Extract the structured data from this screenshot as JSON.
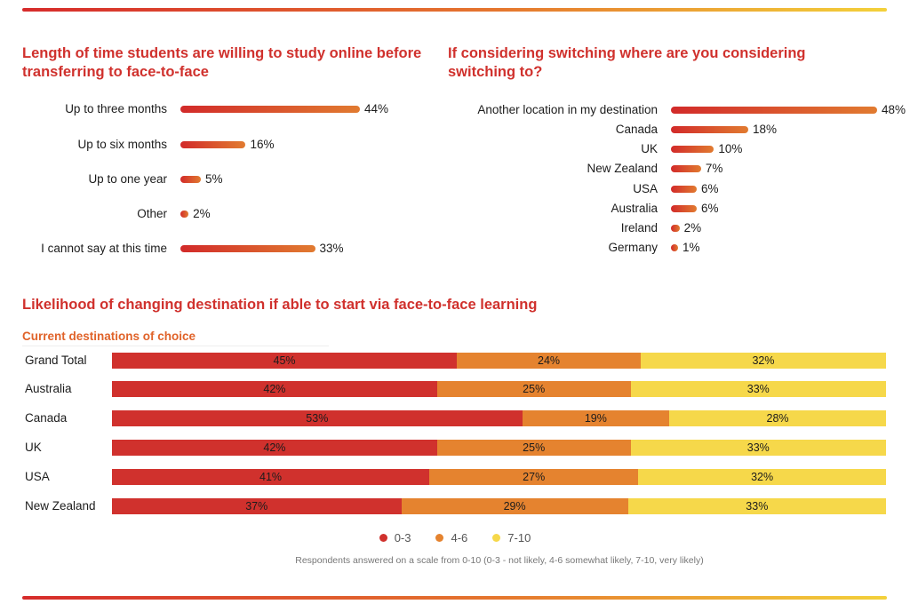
{
  "colors": {
    "accent": "#d0312d",
    "bar_start": "#d22a2a",
    "bar_end": "#e17b30",
    "seg_low": "#d0312d",
    "seg_mid": "#e5832f",
    "seg_high": "#f6d84a",
    "subtitle": "#e0632a"
  },
  "chart_data": [
    {
      "type": "bar",
      "orientation": "horizontal",
      "title": "Length of time students are willing to study online before transferring to face-to-face",
      "categories": [
        "Up to three months",
        "Up to six months",
        "Up to one year",
        "Other",
        "I cannot say at this time"
      ],
      "values": [
        44,
        16,
        5,
        2,
        33
      ],
      "labels": [
        "44%",
        "16%",
        "5%",
        "2%",
        "33%"
      ],
      "unit": "%",
      "xlim": [
        0,
        44
      ]
    },
    {
      "type": "bar",
      "orientation": "horizontal",
      "title": "If considering switching where are you considering switching to?",
      "categories": [
        "Another location in my destination",
        "Canada",
        "UK",
        "New Zealand",
        "USA",
        "Australia",
        "Ireland",
        "Germany"
      ],
      "values": [
        48,
        18,
        10,
        7,
        6,
        6,
        2,
        1
      ],
      "labels": [
        "48%",
        "18%",
        "10%",
        "7%",
        "6%",
        "6%",
        "2%",
        "1%"
      ],
      "unit": "%",
      "xlim": [
        0,
        48
      ]
    },
    {
      "type": "bar",
      "orientation": "horizontal",
      "stacked": true,
      "title": "Likelihood of changing destination if able to start via face-to-face learning",
      "subtitle": "Current destinations of choice",
      "categories": [
        "Grand Total",
        "Australia",
        "Canada",
        "UK",
        "USA",
        "New Zealand"
      ],
      "series": [
        {
          "name": "0-3",
          "values": [
            45,
            42,
            53,
            42,
            41,
            37
          ],
          "labels": [
            "45%",
            "42%",
            "53%",
            "42%",
            "41%",
            "37%"
          ]
        },
        {
          "name": "4-6",
          "values": [
            24,
            25,
            19,
            25,
            27,
            29
          ],
          "labels": [
            "24%",
            "25%",
            "19%",
            "25%",
            "27%",
            "29%"
          ]
        },
        {
          "name": "7-10",
          "values": [
            32,
            33,
            28,
            33,
            32,
            33
          ],
          "labels": [
            "32%",
            "33%",
            "28%",
            "33%",
            "32%",
            "33%"
          ]
        }
      ],
      "legend": [
        "0-3",
        "4-6",
        "7-10"
      ],
      "footnote": "Respondents answered on a scale from 0-10 (0-3 - not likely, 4-6 somewhat likely, 7-10, very likely)"
    }
  ]
}
